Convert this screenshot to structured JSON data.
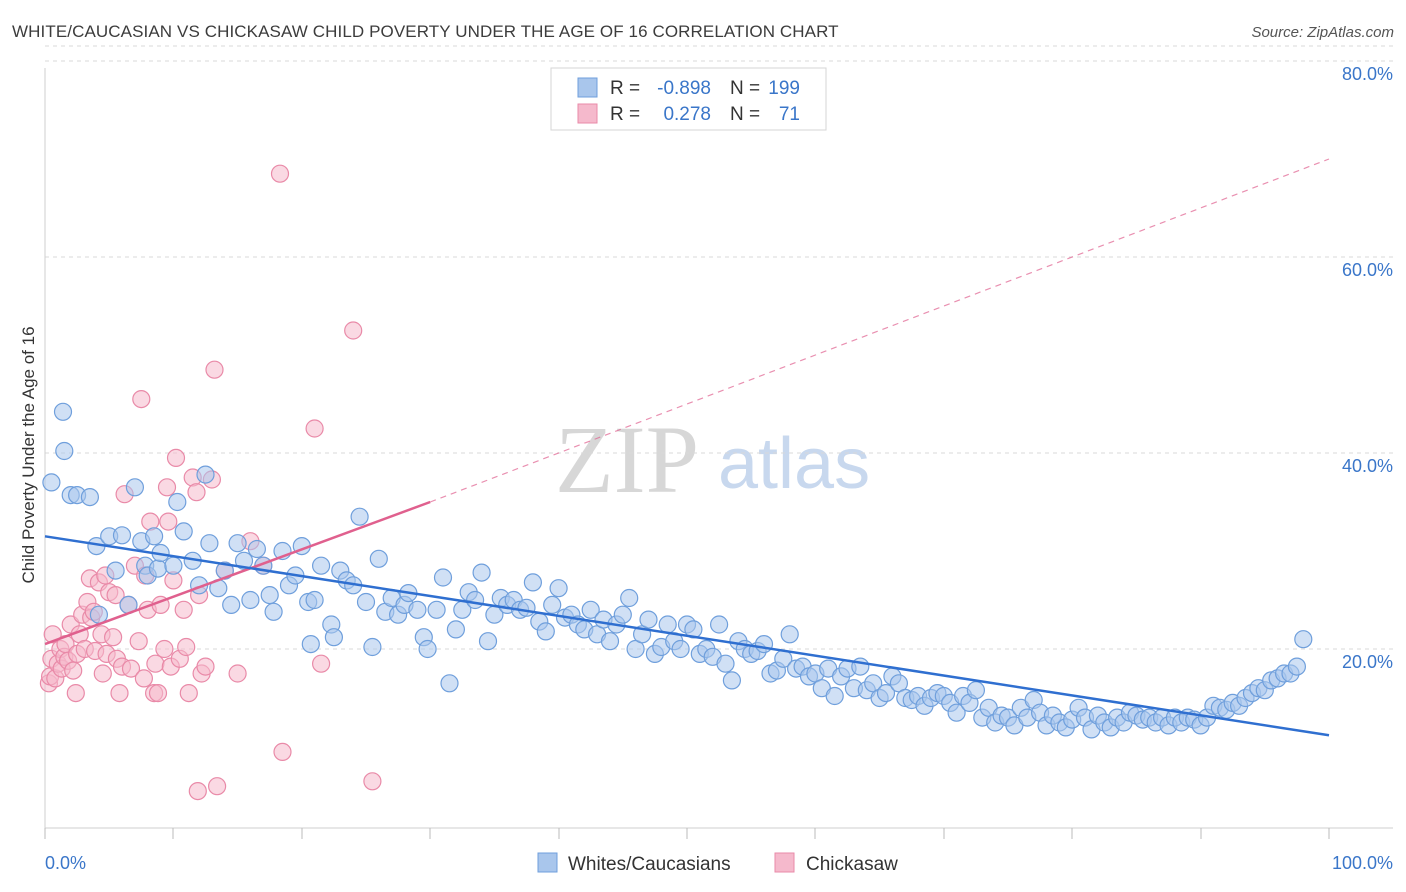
{
  "title": "WHITE/CAUCASIAN VS CHICKASAW CHILD POVERTY UNDER THE AGE OF 16 CORRELATION CHART",
  "source": "Source: ZipAtlas.com",
  "watermark": {
    "zip": "ZIP",
    "atlas": "atlas"
  },
  "colors": {
    "blue_fill": "#a9c6ec",
    "blue_stroke": "#6f9fdc",
    "blue_line": "#2f6fd0",
    "pink_fill": "#f5b9cc",
    "pink_stroke": "#e98aa8",
    "pink_line": "#e0608e",
    "grid": "#d9d9d9",
    "tick_text": "#3a76c9"
  },
  "stats": {
    "rows": [
      {
        "r_label": "R =",
        "r_value": "-0.898",
        "n_label": "N =",
        "n_value": "199"
      },
      {
        "r_label": "R =",
        "r_value": "0.278",
        "n_label": "N =",
        "n_value": "71"
      }
    ]
  },
  "legend": {
    "series": [
      "Whites/Caucasians",
      "Chickasaw"
    ]
  },
  "chart_data": {
    "type": "scatter",
    "title": "WHITE/CAUCASIAN VS CHICKASAW CHILD POVERTY UNDER THE AGE OF 16 CORRELATION CHART",
    "xlabel": "",
    "ylabel": "Child Poverty Under the Age of 16",
    "xlim": [
      0,
      100
    ],
    "ylim": [
      0,
      82
    ],
    "x_tick_labels": [
      "0.0%",
      "100.0%"
    ],
    "y_ticks": [
      20,
      40,
      60,
      80
    ],
    "y_tick_labels": [
      "20.0%",
      "40.0%",
      "60.0%",
      "80.0%"
    ],
    "grid": true,
    "legend_position": "bottom-center",
    "series": [
      {
        "name": "Whites/Caucasians",
        "r": -0.898,
        "n": 199,
        "trend": {
          "x": [
            0,
            100
          ],
          "y": [
            31.5,
            11.2
          ]
        },
        "points": [
          [
            0.5,
            37
          ],
          [
            1.5,
            40.2
          ],
          [
            1.4,
            44.2
          ],
          [
            2,
            35.7
          ],
          [
            2.5,
            35.7
          ],
          [
            3.5,
            35.5
          ],
          [
            4,
            30.5
          ],
          [
            4.2,
            23.5
          ],
          [
            5,
            31.5
          ],
          [
            5.5,
            28
          ],
          [
            6,
            31.6
          ],
          [
            6.5,
            24.5
          ],
          [
            7,
            36.5
          ],
          [
            7.5,
            31
          ],
          [
            7.8,
            28.5
          ],
          [
            8,
            27.5
          ],
          [
            8.5,
            31.5
          ],
          [
            8.8,
            28.2
          ],
          [
            9,
            29.8
          ],
          [
            10,
            28.5
          ],
          [
            10.3,
            35
          ],
          [
            10.8,
            32
          ],
          [
            11.5,
            29
          ],
          [
            12,
            26.5
          ],
          [
            12.5,
            37.8
          ],
          [
            12.8,
            30.8
          ],
          [
            13.5,
            26.2
          ],
          [
            14,
            28
          ],
          [
            14.5,
            24.5
          ],
          [
            15,
            30.8
          ],
          [
            15.5,
            29
          ],
          [
            16,
            25
          ],
          [
            16.5,
            30.2
          ],
          [
            17,
            28.5
          ],
          [
            17.5,
            25.5
          ],
          [
            17.8,
            23.8
          ],
          [
            18.5,
            30
          ],
          [
            19,
            26.5
          ],
          [
            19.5,
            27.5
          ],
          [
            20,
            30.5
          ],
          [
            20.5,
            24.8
          ],
          [
            20.7,
            20.5
          ],
          [
            21,
            25
          ],
          [
            21.5,
            28.5
          ],
          [
            22.3,
            22.5
          ],
          [
            22.5,
            21.2
          ],
          [
            23,
            28
          ],
          [
            23.5,
            27
          ],
          [
            24,
            26.5
          ],
          [
            24.5,
            33.5
          ],
          [
            25,
            24.8
          ],
          [
            25.5,
            20.2
          ],
          [
            26,
            29.2
          ],
          [
            26.5,
            23.8
          ],
          [
            27,
            25.2
          ],
          [
            27.5,
            23.5
          ],
          [
            28,
            24.5
          ],
          [
            28.3,
            25.7
          ],
          [
            29,
            24
          ],
          [
            29.5,
            21.2
          ],
          [
            29.8,
            20
          ],
          [
            30.5,
            24
          ],
          [
            31,
            27.3
          ],
          [
            31.5,
            16.5
          ],
          [
            32,
            22
          ],
          [
            32.5,
            24
          ],
          [
            33,
            25.8
          ],
          [
            33.5,
            25
          ],
          [
            34,
            27.8
          ],
          [
            34.5,
            20.8
          ],
          [
            35,
            23.5
          ],
          [
            35.5,
            25.2
          ],
          [
            36,
            24.5
          ],
          [
            36.5,
            25
          ],
          [
            37,
            24
          ],
          [
            37.5,
            24.2
          ],
          [
            38,
            26.8
          ],
          [
            38.5,
            22.8
          ],
          [
            39,
            21.8
          ],
          [
            39.5,
            24.5
          ],
          [
            40,
            26.2
          ],
          [
            40.5,
            23.2
          ],
          [
            41,
            23.5
          ],
          [
            41.5,
            22.5
          ],
          [
            42,
            22
          ],
          [
            42.5,
            24
          ],
          [
            43,
            21.5
          ],
          [
            43.5,
            23
          ],
          [
            44,
            20.8
          ],
          [
            44.5,
            22.5
          ],
          [
            45,
            23.5
          ],
          [
            45.5,
            25.2
          ],
          [
            46,
            20
          ],
          [
            46.5,
            21.5
          ],
          [
            47,
            23
          ],
          [
            47.5,
            19.5
          ],
          [
            48,
            20.2
          ],
          [
            48.5,
            22.5
          ],
          [
            49,
            20.8
          ],
          [
            49.5,
            20
          ],
          [
            50,
            22.5
          ],
          [
            50.5,
            22
          ],
          [
            51,
            19.5
          ],
          [
            51.5,
            20
          ],
          [
            52,
            19.2
          ],
          [
            52.5,
            22.5
          ],
          [
            53,
            18.5
          ],
          [
            53.5,
            16.8
          ],
          [
            54,
            20.8
          ],
          [
            54.5,
            20
          ],
          [
            55,
            19.5
          ],
          [
            55.5,
            19.8
          ],
          [
            56,
            20.5
          ],
          [
            56.5,
            17.5
          ],
          [
            57,
            17.8
          ],
          [
            57.5,
            19
          ],
          [
            58,
            21.5
          ],
          [
            58.5,
            18
          ],
          [
            59,
            18.2
          ],
          [
            59.5,
            17.2
          ],
          [
            60,
            17.5
          ],
          [
            60.5,
            16
          ],
          [
            61,
            18
          ],
          [
            61.5,
            15.2
          ],
          [
            62,
            17.2
          ],
          [
            62.5,
            18
          ],
          [
            63,
            16
          ],
          [
            63.5,
            18.2
          ],
          [
            64,
            15.8
          ],
          [
            64.5,
            16.5
          ],
          [
            65,
            15
          ],
          [
            65.5,
            15.5
          ],
          [
            66,
            17.2
          ],
          [
            66.5,
            16.5
          ],
          [
            67,
            15
          ],
          [
            67.5,
            14.8
          ],
          [
            68,
            15.2
          ],
          [
            68.5,
            14.2
          ],
          [
            69,
            15
          ],
          [
            69.5,
            15.5
          ],
          [
            70,
            15.2
          ],
          [
            70.5,
            14.5
          ],
          [
            71,
            13.5
          ],
          [
            71.5,
            15.2
          ],
          [
            72,
            14.5
          ],
          [
            72.5,
            15.8
          ],
          [
            73,
            13
          ],
          [
            73.5,
            14
          ],
          [
            74,
            12.5
          ],
          [
            74.5,
            13.2
          ],
          [
            75,
            13
          ],
          [
            75.5,
            12.2
          ],
          [
            76,
            14
          ],
          [
            76.5,
            13
          ],
          [
            77,
            14.8
          ],
          [
            77.5,
            13.5
          ],
          [
            78,
            12.2
          ],
          [
            78.5,
            13.2
          ],
          [
            79,
            12.5
          ],
          [
            79.5,
            12
          ],
          [
            80,
            12.8
          ],
          [
            80.5,
            14
          ],
          [
            81,
            13
          ],
          [
            81.5,
            11.8
          ],
          [
            82,
            13.2
          ],
          [
            82.5,
            12.5
          ],
          [
            83,
            12
          ],
          [
            83.5,
            13
          ],
          [
            84,
            12.5
          ],
          [
            84.5,
            13.5
          ],
          [
            85,
            13.2
          ],
          [
            85.5,
            12.8
          ],
          [
            86,
            13
          ],
          [
            86.5,
            12.5
          ],
          [
            87,
            13
          ],
          [
            87.5,
            12.2
          ],
          [
            88,
            13
          ],
          [
            88.5,
            12.5
          ],
          [
            89,
            13
          ],
          [
            89.5,
            12.8
          ],
          [
            90,
            12.2
          ],
          [
            90.5,
            13
          ],
          [
            91,
            14.2
          ],
          [
            91.5,
            14
          ],
          [
            92,
            13.8
          ],
          [
            92.5,
            14.5
          ],
          [
            93,
            14.2
          ],
          [
            93.5,
            15
          ],
          [
            94,
            15.5
          ],
          [
            94.5,
            16
          ],
          [
            95,
            15.8
          ],
          [
            95.5,
            16.8
          ],
          [
            96,
            17
          ],
          [
            96.5,
            17.5
          ],
          [
            97,
            17.5
          ],
          [
            97.5,
            18.2
          ],
          [
            98,
            21
          ]
        ]
      },
      {
        "name": "Chickasaw",
        "r": 0.278,
        "n": 71,
        "trend": {
          "x": [
            0,
            30
          ],
          "y": [
            20.5,
            35
          ]
        },
        "trend_extension": {
          "x": [
            30,
            100
          ],
          "y": [
            35,
            70
          ]
        },
        "points": [
          [
            0.3,
            16.5
          ],
          [
            0.4,
            17.2
          ],
          [
            0.5,
            19
          ],
          [
            0.6,
            21.5
          ],
          [
            0.8,
            17
          ],
          [
            1,
            18.5
          ],
          [
            1.2,
            20
          ],
          [
            1.3,
            18
          ],
          [
            1.5,
            19.2
          ],
          [
            1.6,
            20.5
          ],
          [
            1.8,
            18.8
          ],
          [
            2,
            22.5
          ],
          [
            2.2,
            17.8
          ],
          [
            2.4,
            15.5
          ],
          [
            2.5,
            19.5
          ],
          [
            2.7,
            21.5
          ],
          [
            2.9,
            23.5
          ],
          [
            3.1,
            20
          ],
          [
            3.3,
            24.8
          ],
          [
            3.5,
            27.2
          ],
          [
            3.6,
            23.2
          ],
          [
            3.8,
            23.8
          ],
          [
            3.9,
            19.8
          ],
          [
            4.2,
            26.8
          ],
          [
            4.4,
            21.5
          ],
          [
            4.5,
            17.5
          ],
          [
            4.7,
            27.5
          ],
          [
            4.8,
            19.5
          ],
          [
            5,
            25.8
          ],
          [
            5.3,
            21.2
          ],
          [
            5.5,
            25.5
          ],
          [
            5.6,
            19
          ],
          [
            5.8,
            15.5
          ],
          [
            6,
            18.2
          ],
          [
            6.2,
            35.8
          ],
          [
            6.5,
            24.5
          ],
          [
            6.7,
            18
          ],
          [
            7,
            28.5
          ],
          [
            7.3,
            20.8
          ],
          [
            7.5,
            45.5
          ],
          [
            7.7,
            17
          ],
          [
            7.8,
            27.5
          ],
          [
            8,
            24
          ],
          [
            8.2,
            33
          ],
          [
            8.5,
            15.5
          ],
          [
            8.6,
            18.5
          ],
          [
            8.8,
            15.5
          ],
          [
            9,
            24.5
          ],
          [
            9.3,
            20
          ],
          [
            9.5,
            36.5
          ],
          [
            9.6,
            33
          ],
          [
            9.8,
            18.2
          ],
          [
            10,
            27
          ],
          [
            10.2,
            39.5
          ],
          [
            10.5,
            19
          ],
          [
            10.8,
            24
          ],
          [
            11,
            20.2
          ],
          [
            11.2,
            15.5
          ],
          [
            11.5,
            37.5
          ],
          [
            11.8,
            36
          ],
          [
            11.9,
            5.5
          ],
          [
            12,
            25.5
          ],
          [
            12.2,
            17.5
          ],
          [
            12.5,
            18.2
          ],
          [
            13,
            37.3
          ],
          [
            13.2,
            48.5
          ],
          [
            13.4,
            6
          ],
          [
            14,
            28
          ],
          [
            15,
            17.5
          ],
          [
            16,
            31
          ],
          [
            17,
            28.5
          ],
          [
            18.3,
            68.5
          ],
          [
            18.5,
            9.5
          ],
          [
            21,
            42.5
          ],
          [
            21.5,
            18.5
          ],
          [
            24,
            52.5
          ],
          [
            25.5,
            6.5
          ]
        ]
      }
    ]
  }
}
